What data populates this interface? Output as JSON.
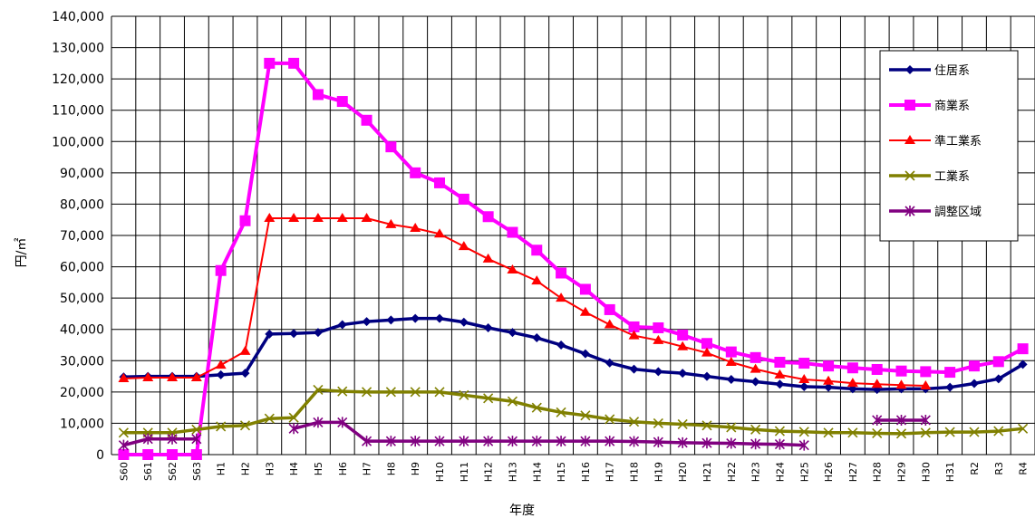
{
  "chart_data": {
    "type": "line",
    "title": "",
    "xlabel": "年度",
    "ylabel": "円/㎡",
    "ylim": [
      0,
      140000
    ],
    "yticks": [
      "0",
      "10,000",
      "20,000",
      "30,000",
      "40,000",
      "50,000",
      "60,000",
      "70,000",
      "80,000",
      "90,000",
      "100,000",
      "110,000",
      "120,000",
      "130,000",
      "140,000"
    ],
    "grid": true,
    "legend_position": "top-right",
    "categories": [
      "S60",
      "S61",
      "S62",
      "S63",
      "H1",
      "H2",
      "H3",
      "H4",
      "H5",
      "H6",
      "H7",
      "H8",
      "H9",
      "H10",
      "H11",
      "H12",
      "H13",
      "H14",
      "H15",
      "H16",
      "H17",
      "H18",
      "H19",
      "H20",
      "H21",
      "H22",
      "H23",
      "H24",
      "H25",
      "H26",
      "H27",
      "H28",
      "H29",
      "H30",
      "H31",
      "R2",
      "R3",
      "R4"
    ],
    "series": [
      {
        "name": "住居系",
        "color": "#000080",
        "marker": "diamond",
        "values": [
          24800,
          25000,
          25000,
          25000,
          25500,
          26000,
          38500,
          38700,
          39000,
          41500,
          42500,
          43000,
          43500,
          43500,
          42300,
          40500,
          39000,
          37300,
          35000,
          32200,
          29300,
          27300,
          26500,
          26000,
          25000,
          24000,
          23300,
          22500,
          21700,
          21500,
          21000,
          20800,
          21000,
          21000,
          21500,
          22700,
          24200,
          28800
        ]
      },
      {
        "name": "商業系",
        "color": "#ff00ff",
        "marker": "square",
        "values": [
          0,
          0,
          0,
          0,
          58800,
          74700,
          125000,
          125000,
          115000,
          112800,
          106800,
          98300,
          90000,
          86800,
          81600,
          76000,
          71000,
          65300,
          58000,
          52800,
          46300,
          40800,
          40500,
          38200,
          35500,
          32800,
          31000,
          29500,
          29200,
          28300,
          27700,
          27200,
          26700,
          26500,
          26300,
          28300,
          29700,
          33800
        ]
      },
      {
        "name": "準工業系",
        "color": "#ff0000",
        "marker": "triangle",
        "values": [
          24300,
          24600,
          24600,
          24600,
          28600,
          33000,
          75500,
          75500,
          75500,
          75500,
          75500,
          73500,
          72300,
          70500,
          66500,
          62500,
          59000,
          55500,
          50000,
          45500,
          41500,
          38000,
          36500,
          34500,
          32500,
          29500,
          27300,
          25500,
          24000,
          23500,
          22800,
          22500,
          22200,
          22000,
          null,
          null,
          null,
          null
        ]
      },
      {
        "name": "工業系",
        "color": "#808000",
        "marker": "x",
        "values": [
          7000,
          7000,
          7000,
          8000,
          9000,
          9300,
          11500,
          11800,
          20700,
          20200,
          20000,
          20000,
          20000,
          20000,
          19000,
          18000,
          17000,
          15000,
          13500,
          12500,
          11300,
          10500,
          10000,
          9700,
          9300,
          8700,
          8000,
          7500,
          7300,
          7000,
          7000,
          6800,
          6700,
          7000,
          7200,
          7200,
          7500,
          8300
        ]
      },
      {
        "name": "調整区域",
        "color": "#800080",
        "marker": "asterisk",
        "values": [
          3000,
          5000,
          5000,
          5000,
          null,
          null,
          null,
          8300,
          10300,
          10300,
          4300,
          4300,
          4300,
          4300,
          4300,
          4300,
          4300,
          4300,
          4300,
          4300,
          4300,
          4200,
          4000,
          3800,
          3700,
          3600,
          3400,
          3300,
          3000,
          null,
          null,
          11000,
          11000,
          11000,
          null,
          null,
          null,
          null
        ]
      }
    ]
  }
}
